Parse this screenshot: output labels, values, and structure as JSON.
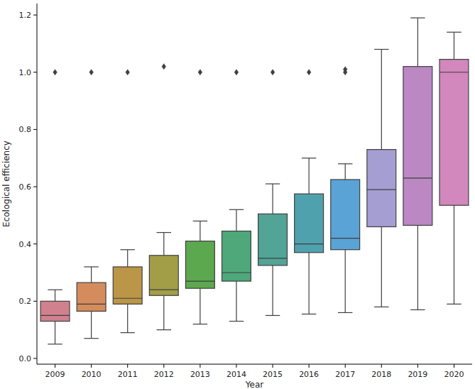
{
  "chart_data": {
    "type": "box",
    "x_label": "Year",
    "y_label": "Ecological efficiency",
    "categories": [
      "2009",
      "2010",
      "2011",
      "2012",
      "2013",
      "2014",
      "2015",
      "2016",
      "2017",
      "2018",
      "2019",
      "2020"
    ],
    "boxes": [
      {
        "whislo": 0.05,
        "q1": 0.13,
        "med": 0.15,
        "q3": 0.2,
        "whishi": 0.24,
        "fliers": [
          1.0
        ]
      },
      {
        "whislo": 0.07,
        "q1": 0.165,
        "med": 0.19,
        "q3": 0.265,
        "whishi": 0.32,
        "fliers": [
          1.0
        ]
      },
      {
        "whislo": 0.09,
        "q1": 0.19,
        "med": 0.21,
        "q3": 0.32,
        "whishi": 0.38,
        "fliers": [
          1.0
        ]
      },
      {
        "whislo": 0.1,
        "q1": 0.22,
        "med": 0.24,
        "q3": 0.36,
        "whishi": 0.44,
        "fliers": [
          1.02
        ]
      },
      {
        "whislo": 0.12,
        "q1": 0.245,
        "med": 0.27,
        "q3": 0.41,
        "whishi": 0.48,
        "fliers": [
          1.0
        ]
      },
      {
        "whislo": 0.13,
        "q1": 0.27,
        "med": 0.3,
        "q3": 0.445,
        "whishi": 0.52,
        "fliers": [
          1.0
        ]
      },
      {
        "whislo": 0.15,
        "q1": 0.325,
        "med": 0.35,
        "q3": 0.505,
        "whishi": 0.61,
        "fliers": [
          1.0
        ]
      },
      {
        "whislo": 0.155,
        "q1": 0.37,
        "med": 0.4,
        "q3": 0.575,
        "whishi": 0.7,
        "fliers": [
          1.0
        ]
      },
      {
        "whislo": 0.16,
        "q1": 0.38,
        "med": 0.42,
        "q3": 0.625,
        "whishi": 0.68,
        "fliers": [
          1.0,
          1.01
        ]
      },
      {
        "whislo": 0.18,
        "q1": 0.46,
        "med": 0.59,
        "q3": 0.73,
        "whishi": 1.08,
        "fliers": []
      },
      {
        "whislo": 0.17,
        "q1": 0.465,
        "med": 0.63,
        "q3": 1.02,
        "whishi": 1.19,
        "fliers": []
      },
      {
        "whislo": 0.19,
        "q1": 0.535,
        "med": 1.0,
        "q3": 1.045,
        "whishi": 1.14,
        "fliers": []
      }
    ],
    "colors": [
      "#d1818e",
      "#d58c5d",
      "#bb9648",
      "#a29e48",
      "#5ca84f",
      "#4fa87a",
      "#52a497",
      "#50a1ae",
      "#5aa3d6",
      "#a59ed3",
      "#bb88c4",
      "#d287bd"
    ],
    "ylim": [
      -0.02,
      1.24
    ],
    "yticks": [
      {
        "value": 0,
        "label": "0.0"
      },
      {
        "value": 0.2,
        "label": "0.2"
      },
      {
        "value": 0.4,
        "label": "0.4"
      },
      {
        "value": 0.6,
        "label": "0.6"
      },
      {
        "value": 0.8,
        "label": "0.8"
      },
      {
        "value": 1.0,
        "label": "1.0"
      },
      {
        "value": 1.2,
        "label": "1.2"
      }
    ],
    "grid": false
  }
}
